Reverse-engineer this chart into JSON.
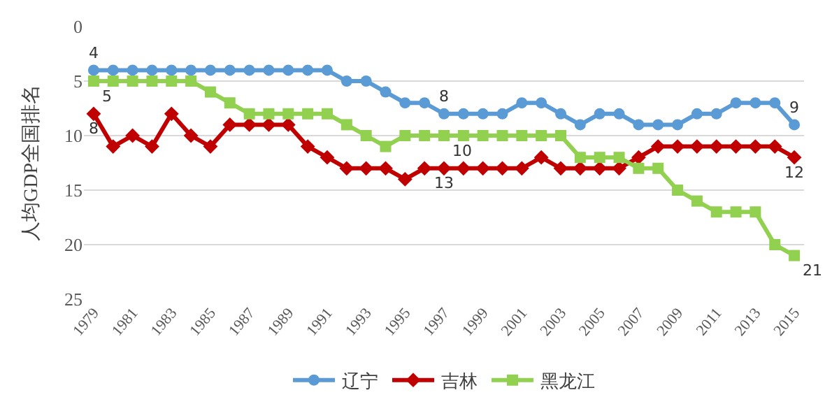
{
  "chart_data": {
    "type": "line",
    "ylabel": "人均GDP全国排名",
    "x": [
      1979,
      1980,
      1981,
      1982,
      1983,
      1984,
      1985,
      1986,
      1987,
      1988,
      1989,
      1990,
      1991,
      1992,
      1993,
      1994,
      1995,
      1996,
      1997,
      1998,
      1999,
      2000,
      2001,
      2002,
      2003,
      2004,
      2005,
      2006,
      2007,
      2008,
      2009,
      2010,
      2011,
      2012,
      2013,
      2014,
      2015
    ],
    "xlim": [
      1978.5,
      2015.5
    ],
    "xticks": [
      1979,
      1981,
      1983,
      1985,
      1987,
      1989,
      1991,
      1993,
      1995,
      1997,
      1999,
      2001,
      2003,
      2005,
      2007,
      2009,
      2011,
      2013,
      2015
    ],
    "ylim": [
      25,
      0
    ],
    "yticks": [
      0,
      5,
      10,
      15,
      20,
      25
    ],
    "grid": "y",
    "legend": "bottom",
    "series": [
      {
        "name": "辽宁",
        "color": "#5b9bd5",
        "marker": "circle",
        "values": [
          4,
          4,
          4,
          4,
          4,
          4,
          4,
          4,
          4,
          4,
          4,
          4,
          4,
          5,
          5,
          6,
          7,
          7,
          8,
          8,
          8,
          8,
          7,
          7,
          8,
          9,
          8,
          8,
          9,
          9,
          9,
          8,
          8,
          7,
          7,
          7,
          9
        ],
        "value_labels": [
          "4",
          null,
          null,
          null,
          null,
          null,
          null,
          null,
          null,
          null,
          null,
          null,
          null,
          null,
          null,
          null,
          null,
          null,
          "8",
          null,
          null,
          null,
          null,
          null,
          null,
          null,
          null,
          null,
          null,
          null,
          null,
          null,
          null,
          null,
          null,
          null,
          "9"
        ]
      },
      {
        "name": "吉林",
        "color": "#c00000",
        "marker": "diamond",
        "values": [
          8,
          11,
          10,
          11,
          8,
          10,
          11,
          9,
          9,
          9,
          9,
          11,
          12,
          13,
          13,
          13,
          14,
          13,
          13,
          13,
          13,
          13,
          13,
          12,
          13,
          13,
          13,
          13,
          12,
          11,
          11,
          11,
          11,
          11,
          11,
          11,
          12
        ],
        "value_labels": [
          "8",
          null,
          null,
          null,
          null,
          null,
          null,
          null,
          null,
          null,
          null,
          null,
          null,
          null,
          null,
          null,
          null,
          null,
          "13",
          null,
          null,
          null,
          null,
          null,
          null,
          null,
          null,
          null,
          null,
          null,
          null,
          null,
          null,
          null,
          null,
          null,
          "12"
        ]
      },
      {
        "name": "黑龙江",
        "color": "#92d050",
        "marker": "square",
        "values": [
          5,
          5,
          5,
          5,
          5,
          5,
          6,
          7,
          8,
          8,
          8,
          8,
          8,
          9,
          10,
          11,
          10,
          10,
          10,
          10,
          10,
          10,
          10,
          10,
          10,
          12,
          12,
          12,
          13,
          13,
          15,
          16,
          17,
          17,
          17,
          20,
          21
        ],
        "value_labels": [
          "5",
          null,
          null,
          null,
          null,
          null,
          null,
          null,
          null,
          null,
          null,
          null,
          null,
          null,
          null,
          null,
          null,
          null,
          "10",
          null,
          null,
          null,
          null,
          null,
          null,
          null,
          null,
          null,
          null,
          null,
          null,
          null,
          null,
          null,
          null,
          null,
          "21"
        ]
      }
    ]
  }
}
